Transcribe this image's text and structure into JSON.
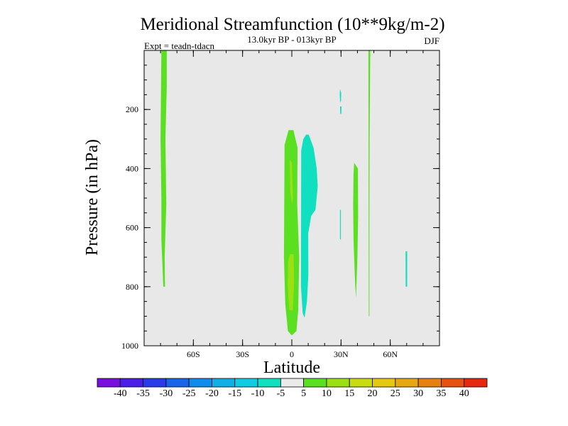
{
  "chart_data": {
    "type": "contour",
    "title": "Meridional Streamfunction (10**9kg/m-2)",
    "subtitle": "13.0kyr BP - 013kyr BP",
    "left_label": "Expt = teadn-tdacn",
    "right_label": "DJF",
    "xlabel": "Latitude",
    "ylabel": "Pressure (in hPa)",
    "xlim": [
      -90,
      90
    ],
    "ylim": [
      1000,
      0
    ],
    "x_ticks": [
      {
        "value": -60,
        "label": "60S"
      },
      {
        "value": -30,
        "label": "30S"
      },
      {
        "value": 0,
        "label": "0"
      },
      {
        "value": 30,
        "label": "30N"
      },
      {
        "value": 60,
        "label": "60N"
      }
    ],
    "y_ticks": [
      {
        "value": 200,
        "label": "200"
      },
      {
        "value": 400,
        "label": "400"
      },
      {
        "value": 600,
        "label": "600"
      },
      {
        "value": 800,
        "label": "800"
      },
      {
        "value": 1000,
        "label": "1000"
      }
    ],
    "colorbar": {
      "levels": [
        "-40",
        "-35",
        "-30",
        "-25",
        "-20",
        "-15",
        "-10",
        "-5",
        "5",
        "10",
        "15",
        "20",
        "25",
        "30",
        "35",
        "40"
      ],
      "colors": [
        "#7a10e0",
        "#4a1ee6",
        "#2a3ce8",
        "#1a64ea",
        "#128cec",
        "#10b0e6",
        "#10cce2",
        "#10e0c0",
        "#eaeaea",
        "#5ae020",
        "#9ae014",
        "#c8dc10",
        "#e6c810",
        "#e6a810",
        "#e68010",
        "#e65010",
        "#e62810"
      ]
    },
    "regions": [
      {
        "name": "region-west-strip",
        "band": "5 to 10",
        "color": "#5ae020",
        "outline": [
          [
            -79.5,
            0
          ],
          [
            -76.2,
            0
          ],
          [
            -76.2,
            120
          ],
          [
            -77,
            300
          ],
          [
            -76.5,
            520
          ],
          [
            -77.5,
            700
          ],
          [
            -77.3,
            800
          ],
          [
            -78.3,
            800
          ],
          [
            -79.5,
            640
          ],
          [
            -79.5,
            500
          ],
          [
            -80,
            300
          ]
        ]
      },
      {
        "name": "region-equator-positive",
        "band": "5 to 10",
        "color": "#5ae020",
        "outline": [
          [
            -2,
            270
          ],
          [
            1,
            270
          ],
          [
            3.5,
            330
          ],
          [
            3.3,
            520
          ],
          [
            4.5,
            700
          ],
          [
            3.9,
            880
          ],
          [
            2.8,
            950
          ],
          [
            0,
            965
          ],
          [
            -2.4,
            950
          ],
          [
            -4,
            860
          ],
          [
            -4.8,
            700
          ],
          [
            -4.6,
            500
          ],
          [
            -4.4,
            320
          ]
        ]
      },
      {
        "name": "region-equator-core",
        "band": "10 to 15",
        "color": "#9ae014",
        "outline": [
          [
            -1,
            690
          ],
          [
            1.1,
            690
          ],
          [
            1.4,
            780
          ],
          [
            0.6,
            880
          ],
          [
            -1.5,
            880
          ],
          [
            -2.5,
            800
          ],
          [
            -2.2,
            710
          ]
        ]
      },
      {
        "name": "region-equator-sliver",
        "band": "10 to 15",
        "color": "#9ae014",
        "outline": [
          [
            -1.3,
            370
          ],
          [
            0,
            380
          ],
          [
            0.7,
            500
          ],
          [
            0.1,
            520
          ],
          [
            -0.9,
            480
          ]
        ]
      },
      {
        "name": "region-equator-negative",
        "band": "-10 to -5",
        "color": "#10e0c0",
        "outline": [
          [
            8.7,
            285
          ],
          [
            10.3,
            285
          ],
          [
            13.3,
            330
          ],
          [
            15.2,
            400
          ],
          [
            15.8,
            460
          ],
          [
            14.4,
            540
          ],
          [
            11.8,
            560
          ],
          [
            10,
            620
          ],
          [
            10.1,
            760
          ],
          [
            9.2,
            850
          ],
          [
            7.8,
            905
          ],
          [
            6.6,
            890
          ],
          [
            5.6,
            800
          ],
          [
            5.7,
            340
          ],
          [
            7,
            300
          ]
        ]
      },
      {
        "name": "region-30n-negative-small",
        "band": "-10 to -5",
        "color": "#10e0c0",
        "outline": [
          [
            29.4,
            190
          ],
          [
            30.3,
            190
          ],
          [
            30.2,
            215
          ],
          [
            29.5,
            215
          ]
        ]
      },
      {
        "name": "region-30n-negative-upper",
        "band": "-10 to -5",
        "color": "#10e0c0",
        "outline": [
          [
            29.4,
            130
          ],
          [
            30.1,
            145
          ],
          [
            30,
            170
          ],
          [
            29.5,
            178
          ],
          [
            29.2,
            150
          ]
        ]
      },
      {
        "name": "region-30n-negative-thin",
        "band": "-10 to -5",
        "color": "#10e0c0",
        "outline": [
          [
            29.4,
            540
          ],
          [
            29.9,
            540
          ],
          [
            29.9,
            640
          ],
          [
            29.4,
            640
          ]
        ]
      },
      {
        "name": "region-40n-positive",
        "band": "5 to 10",
        "color": "#5ae020",
        "outline": [
          [
            38,
            380
          ],
          [
            40.3,
            400
          ],
          [
            40.4,
            560
          ],
          [
            40,
            700
          ],
          [
            39.1,
            840
          ],
          [
            38.5,
            780
          ],
          [
            37.6,
            640
          ],
          [
            37.4,
            520
          ],
          [
            37.6,
            420
          ]
        ]
      },
      {
        "name": "region-47n-strip",
        "band": "5 to 10",
        "color": "#5ae020",
        "outline": [
          [
            46.7,
            0
          ],
          [
            47.8,
            0
          ],
          [
            47.4,
            300
          ],
          [
            47.3,
            600
          ],
          [
            47.3,
            900
          ],
          [
            46.9,
            900
          ],
          [
            46.8,
            600
          ]
        ]
      },
      {
        "name": "region-70n-negative",
        "band": "-10 to -5",
        "color": "#10e0c0",
        "outline": [
          [
            69.3,
            680
          ],
          [
            70.3,
            680
          ],
          [
            70.3,
            800
          ],
          [
            69.4,
            800
          ]
        ]
      }
    ]
  }
}
